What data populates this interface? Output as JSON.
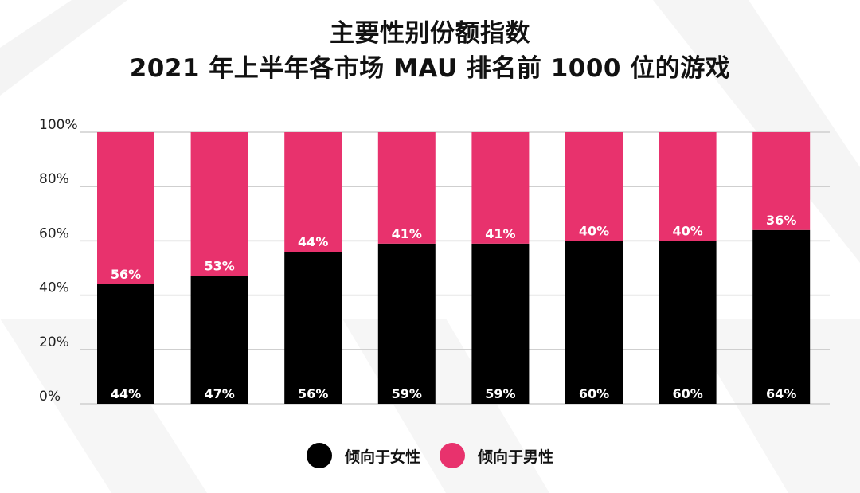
{
  "title": {
    "line1": "主要性别份额指数",
    "line2": "2021 年上半年各市场 MAU 排名前 1000 位的游戏"
  },
  "colors": {
    "female": "#000000",
    "male": "#E8326D",
    "grid": "#cfcfcf",
    "background_decor": "#f3f3f3"
  },
  "chart_data": {
    "type": "bar",
    "stacked": true,
    "categories": [
      "",
      "",
      "",
      "",
      "",
      "",
      "",
      ""
    ],
    "series": [
      {
        "name": "倾向于女性",
        "values": [
          44,
          47,
          56,
          59,
          59,
          60,
          60,
          64
        ]
      },
      {
        "name": "倾向于男性",
        "values": [
          56,
          53,
          44,
          41,
          41,
          40,
          40,
          36
        ]
      }
    ],
    "ylim": [
      0,
      100
    ],
    "yticks": [
      0,
      20,
      40,
      60,
      80,
      100
    ],
    "ytick_labels": [
      "0%",
      "20%",
      "40%",
      "60%",
      "80%",
      "100%"
    ],
    "value_suffix": "%",
    "grid": true,
    "legend_position": "bottom"
  },
  "legend": {
    "items": [
      {
        "label": "倾向于女性"
      },
      {
        "label": "倾向于男性"
      }
    ]
  }
}
